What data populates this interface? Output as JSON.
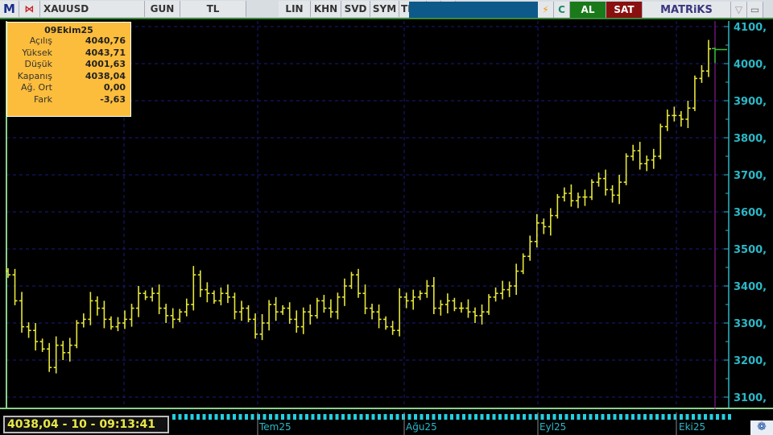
{
  "toolbar": {
    "logo": "M",
    "symbol": "XAUUSD",
    "buttons": [
      "GUN",
      "TL",
      "LIN",
      "KHN",
      "SVD",
      "SYM",
      "TMP"
    ],
    "dropdown_icon": "caret-down-icon",
    "twitter_icon": "twitter-icon",
    "flash_icon": "lightning-icon",
    "refresh_label": "C",
    "buy_label": "AL",
    "sell_label": "SAT",
    "brand": "MATRiKS",
    "min_label": "▽",
    "restore_label": "▭"
  },
  "info": {
    "date": "09Ekim25",
    "rows": [
      {
        "label": "Açılış",
        "value": "4040,76"
      },
      {
        "label": "Yüksek",
        "value": "4043,71"
      },
      {
        "label": "Düşük",
        "value": "4001,63"
      },
      {
        "label": "Kapanış",
        "value": "4038,04"
      },
      {
        "label": "Ağ. Ort",
        "value": "0,00"
      },
      {
        "label": "Fark",
        "value": "-3,63"
      }
    ]
  },
  "status": {
    "readout": "4038,04 - 10 - 09:13:41"
  },
  "chart_data": {
    "type": "bar",
    "symbol": "XAUUSD",
    "ylim": [
      3080,
      4120
    ],
    "yticks": [
      3100,
      3200,
      3300,
      3400,
      3500,
      3600,
      3700,
      3800,
      3900,
      4000,
      4100
    ],
    "ytick_labels": [
      "3100,",
      "3200,",
      "3300,",
      "3400,",
      "3500,",
      "3600,",
      "3700,",
      "3800,",
      "3900,",
      "4000,",
      "4100,"
    ],
    "xtick_labels": [
      "Tem25",
      "Ağu25",
      "Eyl25",
      "Eki25"
    ],
    "grid": true,
    "closes": [
      3430,
      3360,
      3290,
      3280,
      3250,
      3230,
      3180,
      3240,
      3220,
      3240,
      3300,
      3310,
      3360,
      3340,
      3310,
      3290,
      3300,
      3310,
      3340,
      3380,
      3370,
      3380,
      3340,
      3320,
      3310,
      3330,
      3350,
      3430,
      3390,
      3380,
      3360,
      3380,
      3370,
      3330,
      3340,
      3310,
      3270,
      3300,
      3350,
      3330,
      3340,
      3310,
      3290,
      3330,
      3320,
      3360,
      3340,
      3330,
      3370,
      3400,
      3430,
      3380,
      3340,
      3330,
      3310,
      3290,
      3280,
      3370,
      3360,
      3370,
      3380,
      3400,
      3340,
      3350,
      3360,
      3340,
      3340,
      3330,
      3320,
      3330,
      3370,
      3380,
      3390,
      3400,
      3440,
      3480,
      3520,
      3570,
      3560,
      3590,
      3640,
      3650,
      3630,
      3640,
      3640,
      3680,
      3690,
      3660,
      3645,
      3680,
      3750,
      3765,
      3730,
      3740,
      3750,
      3830,
      3860,
      3860,
      3850,
      3880,
      3960,
      3980,
      4040
    ],
    "last_bar": {
      "date": "09Ekim25",
      "open": 4040.76,
      "high": 4043.71,
      "low": 4001.63,
      "close": 4038.04
    },
    "colors": {
      "bars": "#e6e63a",
      "last_bar": "#3ab83a",
      "axis": "#2ab8c8",
      "grid": "#1a1a80",
      "cursor": "#a020a0"
    }
  }
}
